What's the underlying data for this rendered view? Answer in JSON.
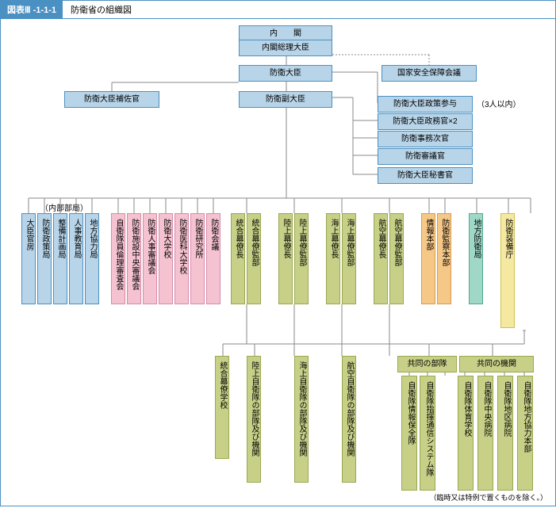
{
  "header": {
    "badge": "図表Ⅲ -1-1-1",
    "title": "防衛省の組織図"
  },
  "footnote": "（臨時又は特例で置くものを除く。）",
  "top": {
    "cabinet": "内　　閣",
    "pm": "内閣総理大臣",
    "minister": "防衛大臣",
    "vice": "防衛副大臣",
    "nsc": "国家安全保障会議",
    "aide": "防衛大臣補佐官",
    "advisor": "防衛大臣政策参与",
    "advisor_note": "（3人以内）",
    "parl": "防衛大臣政務官×2",
    "admin": "防衛事務次官",
    "council": "防衛審議官",
    "sec": "防衛大臣秘書官"
  },
  "label_internal": "（内部部局）",
  "row1": {
    "blue": [
      "大臣官房",
      "防衛政策局",
      "整備計画局",
      "人事教育局",
      "地方協力局"
    ],
    "pink": [
      "自衛隊員倫理審査会",
      "防衛施設中央審議会",
      "防衛人事審議会",
      "防衛大学校",
      "防衛医科大学校",
      "防衛研究所",
      "防衛会議"
    ],
    "olive_pairs": [
      [
        "統合幕僚長",
        "統合幕僚監部"
      ],
      [
        "陸上幕僚長",
        "陸上幕僚監部"
      ],
      [
        "海上幕僚長",
        "海上幕僚監部"
      ],
      [
        "航空幕僚長",
        "航空幕僚監部"
      ]
    ],
    "orange": [
      "情報本部",
      "防衛監察本部"
    ],
    "teal": [
      "地方防衛局"
    ],
    "yellow": [
      "防衛装備庁"
    ]
  },
  "row2": {
    "school": "統合幕僚学校",
    "forces": [
      "陸上自衛隊の部隊及び機関",
      "海上自衛隊の部隊及び機関",
      "航空自衛隊の部隊及び機関"
    ],
    "joint_units_label": "共同の部隊",
    "joint_units": [
      "自衛隊情報保全隊",
      "自衛隊指揮通信システム隊"
    ],
    "joint_orgs_label": "共同の機関",
    "joint_orgs": [
      "自衛隊体育学校",
      "自衛隊中央病院",
      "自衛隊地区病院",
      "自衛隊地方協力本部"
    ]
  },
  "colors": {
    "blue": "#b8d4e8",
    "pink": "#f4c2d0",
    "olive": "#c8d088",
    "orange": "#f5c888",
    "teal": "#a0d8c8",
    "yellow": "#f5e8a0"
  }
}
